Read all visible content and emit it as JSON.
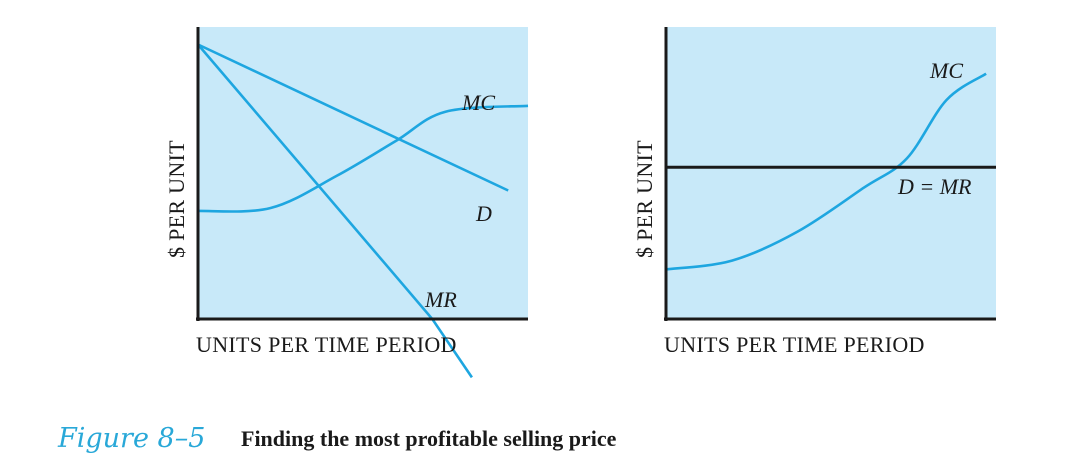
{
  "caption": {
    "figure_label": "Figure 8–5",
    "title": "Finding the most profitable selling price"
  },
  "colors": {
    "panel_bg": "#c8e9f9",
    "curve": "#1ea6e0",
    "axis": "#1a1a1a"
  },
  "chart_data": [
    {
      "type": "line",
      "ylabel": "$ PER UNIT",
      "xlabel": "UNITS PER TIME PERIOD",
      "xlim": [
        0,
        10
      ],
      "ylim": [
        0,
        10
      ],
      "grid": false,
      "series": [
        {
          "name": "MC",
          "style": "curve",
          "points": [
            [
              0,
              3.7
            ],
            [
              2.2,
              3.8
            ],
            [
              4.2,
              4.9
            ],
            [
              6,
              6.1
            ],
            [
              7.5,
              7.1
            ],
            [
              10,
              7.3
            ]
          ]
        },
        {
          "name": "D",
          "style": "line",
          "points": [
            [
              0,
              9.4
            ],
            [
              9.4,
              4.4
            ]
          ]
        },
        {
          "name": "MR",
          "style": "line",
          "points": [
            [
              0,
              9.4
            ],
            [
              7.1,
              0
            ],
            [
              8.3,
              -2
            ]
          ]
        }
      ],
      "labels": [
        {
          "text": "MC",
          "x": 8.5,
          "y": 7.6
        },
        {
          "text": "D",
          "x": 8.7,
          "y": 3.3
        },
        {
          "text": "MR",
          "x": 7.3,
          "y": 0.9
        }
      ]
    },
    {
      "type": "line",
      "ylabel": "$ PER UNIT",
      "xlabel": "UNITS PER TIME PERIOD",
      "xlim": [
        0,
        10
      ],
      "ylim": [
        0,
        10
      ],
      "grid": false,
      "series": [
        {
          "name": "MC",
          "style": "curve",
          "points": [
            [
              0,
              1.7
            ],
            [
              2,
              2.0
            ],
            [
              4,
              3.0
            ],
            [
              6,
              4.5
            ],
            [
              7.3,
              5.5
            ],
            [
              8.5,
              7.5
            ],
            [
              9.7,
              8.4
            ]
          ]
        },
        {
          "name": "D = MR",
          "style": "horizontal",
          "points": [
            [
              0,
              5.2
            ],
            [
              10,
              5.2
            ]
          ]
        }
      ],
      "labels": [
        {
          "text": "MC",
          "x": 9.0,
          "y": 8.6
        },
        {
          "text": "D = MR",
          "x": 8.8,
          "y": 4.4
        }
      ]
    }
  ]
}
